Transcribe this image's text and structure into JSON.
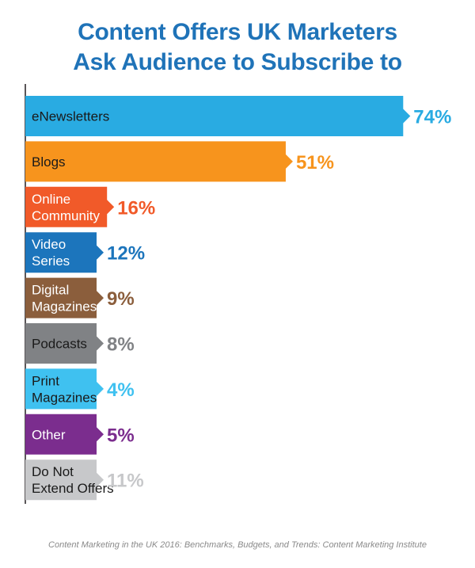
{
  "chart_data": {
    "type": "bar",
    "orientation": "horizontal",
    "title_lines": [
      "Content Offers UK Marketers",
      "Ask Audience to Subscribe to"
    ],
    "categories": [
      [
        "eNewsletters"
      ],
      [
        "Blogs"
      ],
      [
        "Online",
        "Community"
      ],
      [
        "Video",
        "Series"
      ],
      [
        "Digital",
        "Magazines"
      ],
      [
        "Podcasts"
      ],
      [
        "Print",
        "Magazines"
      ],
      [
        "Other"
      ],
      [
        "Do Not",
        "Extend Offers"
      ]
    ],
    "values": [
      74,
      51,
      16,
      12,
      9,
      8,
      4,
      5,
      11
    ],
    "value_labels": [
      "74%",
      "51%",
      "16%",
      "12%",
      "9%",
      "8%",
      "4%",
      "5%",
      "11%"
    ],
    "colors": [
      "#29abe2",
      "#f7941d",
      "#f15a29",
      "#1c75bc",
      "#8b5e3c",
      "#808285",
      "#3fc1f0",
      "#7b2d8e",
      "#c7c8ca"
    ],
    "label_colors": [
      "#1a1a1a",
      "#1a1a1a",
      "#ffffff",
      "#ffffff",
      "#ffffff",
      "#1a1a1a",
      "#1a1a1a",
      "#ffffff",
      "#1a1a1a"
    ],
    "legend": "none",
    "grid": false
  },
  "source": "Content Marketing in the UK 2016: Benchmarks, Budgets, and Trends: Content Marketing Institute"
}
